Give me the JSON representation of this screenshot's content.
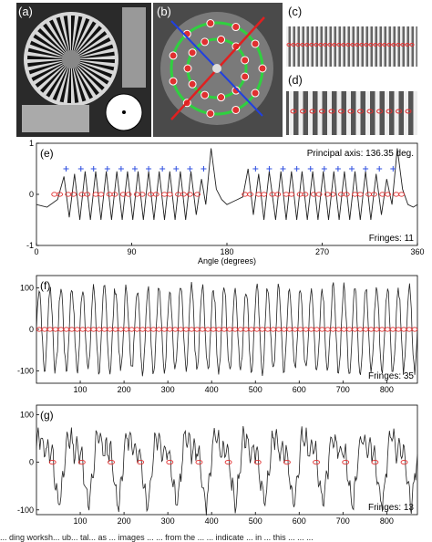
{
  "panels": {
    "a": {
      "label": "(a)"
    },
    "b": {
      "label": "(b)"
    },
    "c": {
      "label": "(c)"
    },
    "d": {
      "label": "(d)"
    }
  },
  "caption": "... ding worksh... ub... tal... as ... images ... ... from the ... ... indicate ... in ... this ... ... ...",
  "chart_data": [
    {
      "type": "line",
      "panel_label": "(e)",
      "title": "",
      "annotation": "Principal axis: 136.35 deg.",
      "fringes_label": "Fringes: 11",
      "xlabel": "Angle (degrees)",
      "ylabel": "",
      "xlim": [
        0,
        360
      ],
      "ylim": [
        -1,
        1
      ],
      "xticks": [
        0,
        90,
        180,
        270,
        360
      ],
      "yticks": [
        -1,
        0,
        1
      ],
      "series": [
        {
          "x": [
            0,
            10,
            20,
            26,
            31,
            36,
            41,
            46,
            51,
            56,
            61,
            66,
            71,
            76,
            81,
            86,
            91,
            96,
            101,
            106,
            111,
            116,
            121,
            126,
            131,
            136,
            141,
            146,
            151,
            156,
            160,
            165,
            170,
            175,
            180,
            185,
            190,
            195,
            200,
            205,
            210,
            215,
            220,
            226,
            231,
            236,
            241,
            246,
            251,
            256,
            261,
            266,
            271,
            276,
            281,
            286,
            291,
            296,
            301,
            306,
            311,
            316,
            321,
            326,
            331,
            336,
            341,
            346,
            351,
            356,
            360
          ],
          "y": [
            -0.2,
            -0.25,
            -0.1,
            0.35,
            -0.45,
            0.4,
            -0.5,
            0.45,
            -0.5,
            0.45,
            -0.5,
            0.45,
            -0.5,
            0.45,
            -0.5,
            0.45,
            -0.5,
            0.45,
            -0.5,
            0.45,
            -0.5,
            0.45,
            -0.5,
            0.45,
            -0.5,
            0.45,
            -0.5,
            0.45,
            -0.4,
            0.3,
            -0.2,
            0.9,
            0.1,
            -0.1,
            -0.2,
            -0.15,
            -0.1,
            -0.05,
            0.5,
            -0.4,
            0.4,
            -0.5,
            0.45,
            -0.5,
            0.45,
            -0.5,
            0.45,
            -0.5,
            0.45,
            -0.5,
            0.45,
            -0.5,
            0.45,
            -0.5,
            0.45,
            -0.5,
            0.45,
            -0.5,
            0.45,
            -0.5,
            0.45,
            -0.5,
            0.4,
            -0.4,
            0.3,
            -0.2,
            0.9,
            0.1,
            -0.2,
            -0.25,
            -0.2
          ]
        }
      ],
      "markers": {
        "crossings_x": [
          17,
          22,
          30,
          35,
          43,
          48,
          56,
          61,
          69,
          74,
          82,
          87,
          95,
          100,
          108,
          113,
          121,
          126,
          134,
          139,
          145,
          152,
          197,
          202,
          210,
          215,
          223,
          228,
          236,
          241,
          249,
          254,
          262,
          267,
          275,
          280,
          288,
          293,
          301,
          306,
          314,
          319,
          327,
          332,
          340,
          345
        ],
        "peaks_x": [
          28,
          42,
          54,
          67,
          80,
          93,
          106,
          119,
          132,
          145,
          158,
          207,
          220,
          233,
          246,
          259,
          272,
          285,
          298,
          311,
          324,
          337
        ]
      }
    },
    {
      "type": "line",
      "panel_label": "(f)",
      "title": "",
      "fringes_label": "Fringes: 35",
      "xlabel": "",
      "ylabel": "",
      "xlim": [
        0,
        870
      ],
      "ylim": [
        -130,
        130
      ],
      "xticks": [
        100,
        200,
        300,
        400,
        500,
        600,
        700,
        800
      ],
      "yticks": [
        -100,
        0,
        100
      ],
      "fringe_count": 35
    },
    {
      "type": "line",
      "panel_label": "(g)",
      "title": "",
      "fringes_label": "Fringes: 13",
      "xlabel": "",
      "ylabel": "",
      "xlim": [
        0,
        870
      ],
      "ylim": [
        -110,
        120
      ],
      "xticks": [
        100,
        200,
        300,
        400,
        500,
        600,
        700,
        800
      ],
      "yticks": [
        -100,
        0,
        100
      ],
      "fringe_count": 13
    }
  ],
  "colors": {
    "curve": "#222222",
    "crossing_marker": "#e03030",
    "peak_marker": "#3050e0",
    "photo_bg": "#1a1a1a",
    "ring_green": "#30d040",
    "axis_red": "#e02020",
    "axis_blue": "#2040e0"
  }
}
